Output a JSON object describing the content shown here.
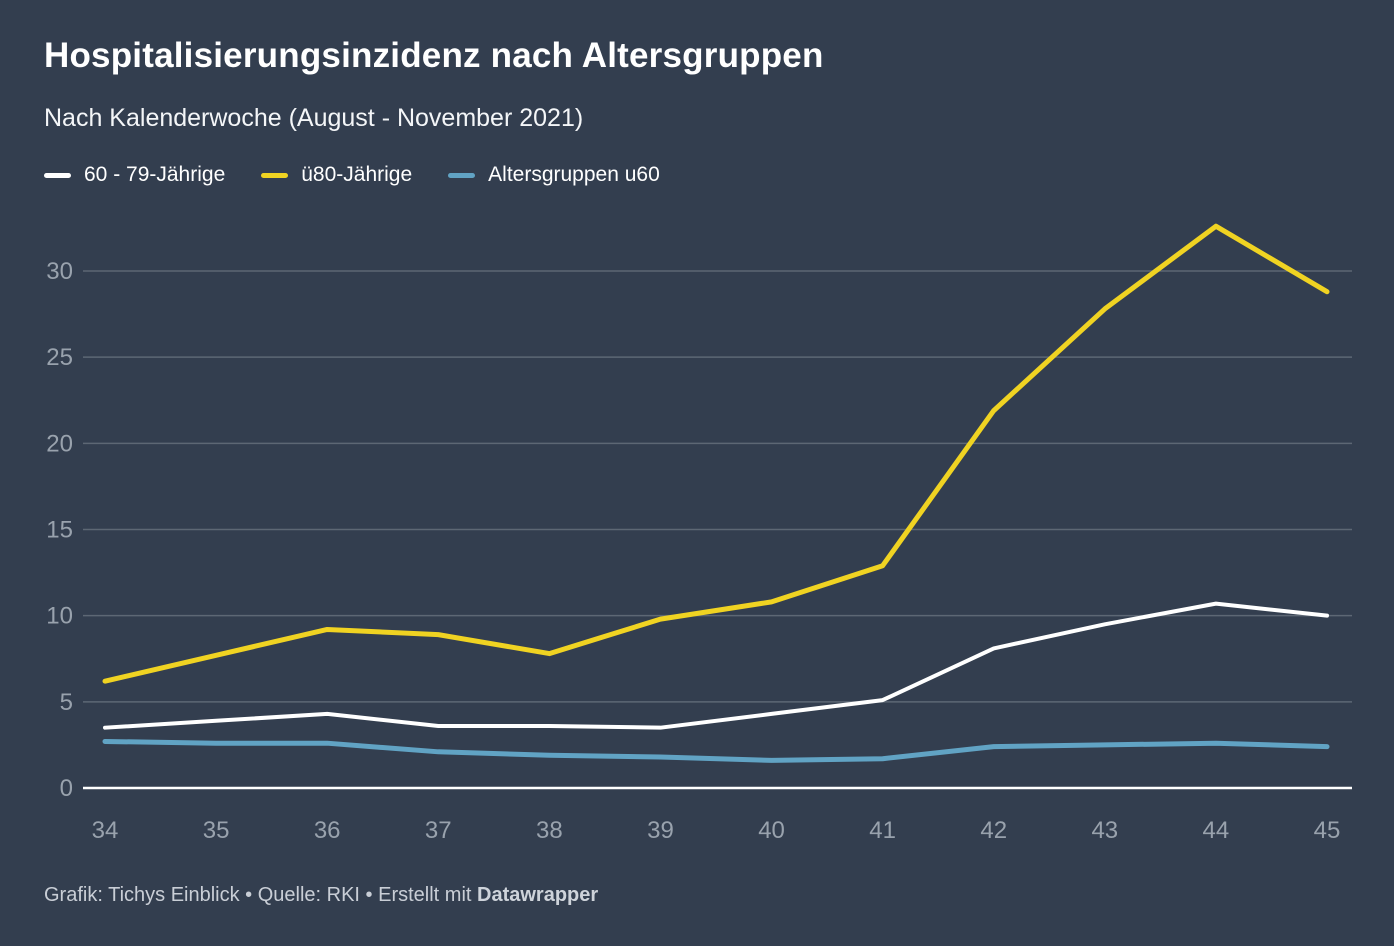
{
  "header": {
    "title": "Hospitalisierungsinzidenz nach Altersgruppen",
    "subtitle": "Nach Kalenderwoche (August - November 2021)"
  },
  "footer": {
    "text": "Grafik: Tichys Einblick • Quelle: RKI • Erstellt mit ",
    "brand": "Datawrapper"
  },
  "colors": {
    "background": "#333e4f",
    "grid": "#5d6774",
    "baseline": "#ffffff",
    "tick_label": "#99a2ad",
    "title": "#ffffff",
    "footer_text": "#c9ced6"
  },
  "chart_data": {
    "type": "line",
    "title": "Hospitalisierungsinzidenz nach Altersgruppen",
    "subtitle": "Nach Kalenderwoche (August - November 2021)",
    "xlabel": "Kalenderwoche",
    "ylabel": "",
    "x": [
      34,
      35,
      36,
      37,
      38,
      39,
      40,
      41,
      42,
      43,
      44,
      45
    ],
    "yticks": [
      0,
      5,
      10,
      15,
      20,
      25,
      30
    ],
    "ylim": [
      0,
      33.5
    ],
    "grid": "horizontal",
    "legend_position": "top",
    "series": [
      {
        "name": "60 - 79-Jährige",
        "color": "#ffffff",
        "values": [
          3.5,
          3.9,
          4.3,
          3.6,
          3.6,
          3.5,
          4.3,
          5.1,
          8.1,
          9.5,
          10.7,
          10.0
        ]
      },
      {
        "name": "ü80-Jährige",
        "color": "#f0d322",
        "values": [
          6.2,
          7.7,
          9.2,
          8.9,
          7.8,
          9.8,
          10.8,
          12.9,
          21.9,
          27.8,
          32.6,
          28.8
        ]
      },
      {
        "name": "Altersgruppen u60",
        "color": "#61a3c4",
        "values": [
          2.7,
          2.6,
          2.6,
          2.1,
          1.9,
          1.8,
          1.6,
          1.7,
          2.4,
          2.5,
          2.6,
          2.4
        ]
      }
    ]
  }
}
